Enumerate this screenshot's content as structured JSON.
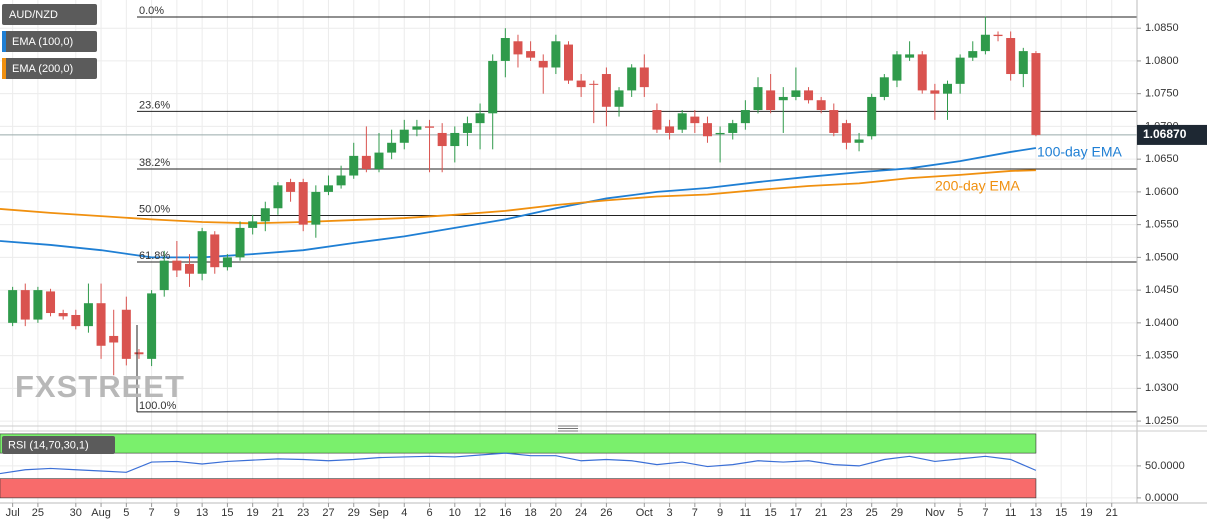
{
  "chart_data": [
    {
      "type": "candlestick",
      "title": "AUD/NZD",
      "watermark": "FXSTREET",
      "up_color": "#2f9a4b",
      "down_color": "#d9534f",
      "open": [
        1.04,
        1.045,
        1.0405,
        1.0448,
        1.0415,
        1.0412,
        1.0395,
        1.043,
        1.038,
        1.042,
        1.0355,
        1.0345,
        1.045,
        1.0495,
        1.049,
        1.0475,
        1.0535,
        1.0485,
        1.05,
        1.0545,
        1.0555,
        1.0575,
        1.0615,
        1.0615,
        1.055,
        1.06,
        1.061,
        1.0625,
        1.0655,
        1.0635,
        1.066,
        1.0675,
        1.0695,
        1.07,
        1.069,
        1.067,
        1.069,
        1.0705,
        1.072,
        1.08,
        1.083,
        1.0815,
        1.08,
        1.079,
        1.0825,
        1.077,
        1.0765,
        1.078,
        1.073,
        1.0755,
        1.079,
        1.0725,
        1.07,
        1.0695,
        1.0715,
        1.0705,
        1.0688,
        1.069,
        1.0705,
        1.0725,
        1.0755,
        1.074,
        1.0745,
        1.0755,
        1.074,
        1.0725,
        1.0705,
        1.0675,
        1.0685,
        1.0745,
        1.077,
        1.0805,
        1.081,
        1.0755,
        1.075,
        1.0765,
        1.0805,
        1.0815,
        1.084,
        1.0835,
        1.078,
        1.0812
      ],
      "high": [
        1.0455,
        1.046,
        1.0455,
        1.0452,
        1.042,
        1.042,
        1.046,
        1.046,
        1.042,
        1.044,
        1.036,
        1.045,
        1.051,
        1.0525,
        1.0505,
        1.0545,
        1.054,
        1.0505,
        1.0555,
        1.0565,
        1.0585,
        1.0615,
        1.062,
        1.062,
        1.061,
        1.0625,
        1.064,
        1.0675,
        1.07,
        1.069,
        1.0695,
        1.071,
        1.071,
        1.071,
        1.0705,
        1.07,
        1.0715,
        1.0735,
        1.081,
        1.085,
        1.084,
        1.083,
        1.081,
        1.084,
        1.083,
        1.078,
        1.077,
        1.079,
        1.076,
        1.0795,
        1.081,
        1.0735,
        1.071,
        1.0725,
        1.0725,
        1.0715,
        1.07,
        1.071,
        1.074,
        1.0775,
        1.078,
        1.076,
        1.079,
        1.076,
        1.0745,
        1.0735,
        1.071,
        1.069,
        1.075,
        1.078,
        1.0815,
        1.083,
        1.0815,
        1.0765,
        1.077,
        1.081,
        1.083,
        1.0868,
        1.0845,
        1.0845,
        1.082,
        1.0815
      ],
      "low": [
        1.0395,
        1.0395,
        1.04,
        1.041,
        1.0405,
        1.039,
        1.0385,
        1.0345,
        1.032,
        1.0335,
        1.0345,
        1.0334,
        1.044,
        1.047,
        1.0455,
        1.0465,
        1.0475,
        1.048,
        1.0495,
        1.0535,
        1.054,
        1.0565,
        1.0585,
        1.054,
        1.053,
        1.0595,
        1.0605,
        1.062,
        1.063,
        1.063,
        1.065,
        1.0665,
        1.0685,
        1.063,
        1.063,
        1.0645,
        1.067,
        1.0665,
        1.0665,
        1.0775,
        1.079,
        1.08,
        1.075,
        1.078,
        1.0765,
        1.0745,
        1.0705,
        1.07,
        1.0715,
        1.0745,
        1.0745,
        1.069,
        1.068,
        1.069,
        1.069,
        1.0675,
        1.0645,
        1.068,
        1.0695,
        1.072,
        1.072,
        1.069,
        1.074,
        1.0735,
        1.072,
        1.0685,
        1.0665,
        1.0662,
        1.068,
        1.074,
        1.076,
        1.08,
        1.075,
        1.071,
        1.071,
        1.075,
        1.08,
        1.081,
        1.083,
        1.077,
        1.076,
        1.0685
      ],
      "close": [
        1.045,
        1.0405,
        1.045,
        1.0415,
        1.041,
        1.0395,
        1.043,
        1.0365,
        1.037,
        1.0345,
        1.0352,
        1.0445,
        1.0495,
        1.048,
        1.0475,
        1.054,
        1.0485,
        1.05,
        1.0545,
        1.0555,
        1.0575,
        1.061,
        1.06,
        1.055,
        1.06,
        1.061,
        1.0625,
        1.0655,
        1.0635,
        1.066,
        1.0675,
        1.0695,
        1.07,
        1.0698,
        1.067,
        1.069,
        1.0705,
        1.072,
        1.08,
        1.0835,
        1.081,
        1.0805,
        1.079,
        1.083,
        1.077,
        1.076,
        1.0764,
        1.073,
        1.0755,
        1.079,
        1.076,
        1.0695,
        1.069,
        1.072,
        1.0705,
        1.0685,
        1.069,
        1.0705,
        1.0725,
        1.076,
        1.0725,
        1.0745,
        1.0755,
        1.074,
        1.0725,
        1.069,
        1.0675,
        1.068,
        1.0745,
        1.0775,
        1.081,
        1.081,
        1.0755,
        1.075,
        1.0765,
        1.0805,
        1.0815,
        1.084,
        1.0838,
        1.078,
        1.0815,
        1.0687
      ],
      "series": [
        {
          "name": "EMA (100,0)",
          "color": "#1f7fd4",
          "annotation": "100-day EMA",
          "x": [
            -1,
            3,
            7,
            11,
            15,
            19,
            23,
            27,
            31,
            35,
            39,
            43,
            47,
            51,
            55,
            59,
            63,
            67,
            71,
            75,
            79,
            81
          ],
          "values": [
            1.0525,
            1.0519,
            1.0511,
            1.05,
            1.05,
            1.0505,
            1.0511,
            1.0522,
            1.0532,
            1.0545,
            1.0558,
            1.0575,
            1.059,
            1.06,
            1.0606,
            1.0615,
            1.0623,
            1.063,
            1.0636,
            1.0647,
            1.0661,
            1.0667
          ]
        },
        {
          "name": "EMA (200,0)",
          "color": "#f0900f",
          "annotation": "200-day EMA",
          "x": [
            -1,
            3,
            7,
            11,
            15,
            19,
            23,
            27,
            31,
            35,
            39,
            43,
            47,
            51,
            55,
            59,
            63,
            67,
            71,
            75,
            79,
            81
          ],
          "values": [
            1.0574,
            1.0568,
            1.0563,
            1.0558,
            1.0554,
            1.0552,
            1.0554,
            1.0557,
            1.056,
            1.0565,
            1.0571,
            1.058,
            1.0587,
            1.0593,
            1.0596,
            1.0603,
            1.0609,
            1.0613,
            1.0621,
            1.0626,
            1.0632,
            1.0633
          ]
        }
      ],
      "fib_levels": [
        {
          "label": "0.0%",
          "value": 1.0867
        },
        {
          "label": "23.6%",
          "value": 1.0723
        },
        {
          "label": "38.2%",
          "value": 1.0635
        },
        {
          "label": "50.0%",
          "value": 1.0564
        },
        {
          "label": "61.8%",
          "value": 1.0493
        },
        {
          "label": "100.0%",
          "value": 1.0264
        }
      ],
      "last_price": {
        "value": 1.0687,
        "label": "1.06870"
      },
      "xlim": [
        -1,
        89
      ],
      "xticks": [
        {
          "value": 0,
          "label": "Jul"
        },
        {
          "value": 2,
          "label": "25"
        },
        {
          "value": 5,
          "label": "30"
        },
        {
          "value": 7,
          "label": "Aug"
        },
        {
          "value": 9,
          "label": "5"
        },
        {
          "value": 11,
          "label": "7"
        },
        {
          "value": 13,
          "label": "9"
        },
        {
          "value": 15,
          "label": "13"
        },
        {
          "value": 17,
          "label": "15"
        },
        {
          "value": 19,
          "label": "19"
        },
        {
          "value": 21,
          "label": "21"
        },
        {
          "value": 23,
          "label": "23"
        },
        {
          "value": 25,
          "label": "27"
        },
        {
          "value": 27,
          "label": "29"
        },
        {
          "value": 29,
          "label": "Sep"
        },
        {
          "value": 31,
          "label": "4"
        },
        {
          "value": 33,
          "label": "6"
        },
        {
          "value": 35,
          "label": "10"
        },
        {
          "value": 37,
          "label": "12"
        },
        {
          "value": 39,
          "label": "16"
        },
        {
          "value": 41,
          "label": "18"
        },
        {
          "value": 43,
          "label": "20"
        },
        {
          "value": 45,
          "label": "24"
        },
        {
          "value": 47,
          "label": "26"
        },
        {
          "value": 50,
          "label": "Oct"
        },
        {
          "value": 52,
          "label": "3"
        },
        {
          "value": 54,
          "label": "7"
        },
        {
          "value": 56,
          "label": "9"
        },
        {
          "value": 58,
          "label": "11"
        },
        {
          "value": 60,
          "label": "15"
        },
        {
          "value": 62,
          "label": "17"
        },
        {
          "value": 64,
          "label": "21"
        },
        {
          "value": 66,
          "label": "23"
        },
        {
          "value": 68,
          "label": "25"
        },
        {
          "value": 70,
          "label": "29"
        },
        {
          "value": 73,
          "label": "Nov"
        },
        {
          "value": 75,
          "label": "5"
        },
        {
          "value": 77,
          "label": "7"
        },
        {
          "value": 79,
          "label": "11"
        },
        {
          "value": 81,
          "label": "13"
        },
        {
          "value": 83,
          "label": "15"
        },
        {
          "value": 85,
          "label": "19"
        },
        {
          "value": 87,
          "label": "21"
        }
      ],
      "ylim": [
        1.0244,
        1.089
      ],
      "yticks": [
        {
          "value": 1.025,
          "label": "1.0250"
        },
        {
          "value": 1.03,
          "label": "1.0300"
        },
        {
          "value": 1.035,
          "label": "1.0350"
        },
        {
          "value": 1.04,
          "label": "1.0400"
        },
        {
          "value": 1.045,
          "label": "1.0450"
        },
        {
          "value": 1.05,
          "label": "1.0500"
        },
        {
          "value": 1.055,
          "label": "1.0550"
        },
        {
          "value": 1.06,
          "label": "1.0600"
        },
        {
          "value": 1.065,
          "label": "1.0650"
        },
        {
          "value": 1.07,
          "label": "1.0700"
        },
        {
          "value": 1.075,
          "label": "1.0750"
        },
        {
          "value": 1.08,
          "label": "1.0800"
        },
        {
          "value": 1.085,
          "label": "1.0850"
        }
      ],
      "grid": true
    },
    {
      "type": "line",
      "title": "RSI (14,70,30,1)",
      "bands": [
        {
          "from": 70,
          "to": 100,
          "color": "#7af06c"
        },
        {
          "from": 0,
          "to": 30,
          "color": "#f86b6b"
        }
      ],
      "series": [
        {
          "name": "RSI",
          "color": "#3b6fd6",
          "x": [
            -1,
            1,
            3,
            5,
            7,
            9,
            11,
            13,
            15,
            17,
            19,
            21,
            23,
            25,
            27,
            29,
            31,
            33,
            35,
            37,
            39,
            41,
            43,
            45,
            47,
            49,
            51,
            53,
            55,
            57,
            59,
            61,
            63,
            65,
            67,
            69,
            71,
            73,
            75,
            77,
            79,
            81
          ],
          "values": [
            38,
            44,
            46,
            44,
            42,
            40,
            56,
            57,
            53,
            57,
            59,
            61,
            60,
            58,
            60,
            63,
            64,
            65,
            64,
            67,
            70,
            66,
            66,
            58,
            60,
            58,
            52,
            56,
            49,
            52,
            58,
            56,
            58,
            52,
            50,
            60,
            65,
            57,
            61,
            65,
            60,
            43
          ]
        }
      ],
      "ylim": [
        -8,
        103
      ],
      "yticks": [
        {
          "value": 0,
          "label": "0.0000"
        },
        {
          "value": 50,
          "label": "50.0000"
        }
      ],
      "grid": true
    }
  ]
}
